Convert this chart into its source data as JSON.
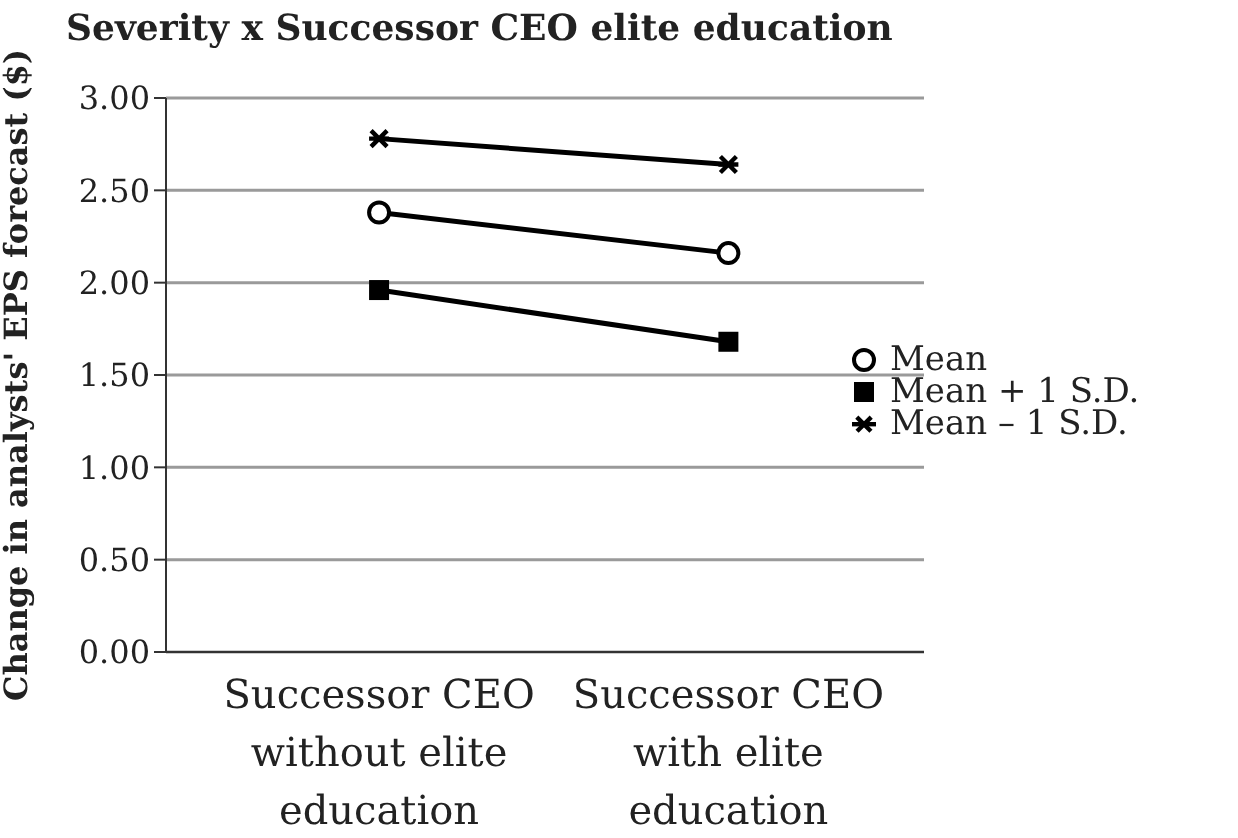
{
  "chart_data": {
    "type": "line",
    "title": "Severity x Successor CEO elite education",
    "ylabel": "Change in analysts' EPS forecast ($)",
    "categories": [
      "Successor CEO without elite education",
      "Successor CEO with elite education"
    ],
    "series": [
      {
        "name": "Mean",
        "color": "#000000",
        "marker": "circle",
        "values": [
          2.38,
          2.16
        ]
      },
      {
        "name": "Mean + 1 S.D.",
        "color": "#000000",
        "marker": "square",
        "values": [
          1.96,
          1.68
        ]
      },
      {
        "name": "Mean – 1 S.D.",
        "color": "#000000",
        "marker": "cross",
        "values": [
          2.78,
          2.64
        ]
      }
    ],
    "ylim": [
      0,
      3
    ],
    "yticks": [
      {
        "value": 0,
        "label": "0.00"
      },
      {
        "value": 0.5,
        "label": "0.50"
      },
      {
        "value": 1,
        "label": "1.00"
      },
      {
        "value": 1.5,
        "label": "1.50"
      },
      {
        "value": 2,
        "label": "2.00"
      },
      {
        "value": 2.5,
        "label": "2.50"
      },
      {
        "value": 3,
        "label": "3.00"
      }
    ],
    "grid": "y",
    "legend": "right",
    "line_style": "solid"
  }
}
